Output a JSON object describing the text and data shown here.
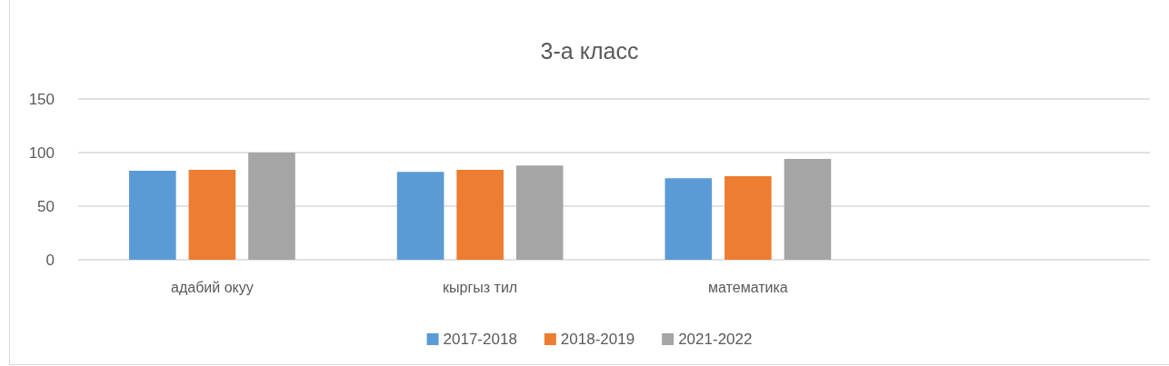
{
  "chart_data": {
    "type": "bar",
    "title": "3-а класс",
    "categories": [
      "адабий окуу",
      "кыргыз тил",
      "математика",
      null
    ],
    "series": [
      {
        "name": "2017-2018",
        "color": "#5b9bd5",
        "values": [
          83,
          82,
          76,
          null
        ]
      },
      {
        "name": "2018-2019",
        "color": "#ed7d31",
        "values": [
          84,
          84,
          78,
          null
        ]
      },
      {
        "name": "2021-2022",
        "color": "#a5a5a5",
        "values": [
          100,
          88,
          94,
          null
        ]
      }
    ],
    "ylim": [
      0,
      150
    ],
    "yticks": [
      0,
      50,
      100,
      150
    ],
    "grid": "y",
    "legend": "bottom"
  }
}
